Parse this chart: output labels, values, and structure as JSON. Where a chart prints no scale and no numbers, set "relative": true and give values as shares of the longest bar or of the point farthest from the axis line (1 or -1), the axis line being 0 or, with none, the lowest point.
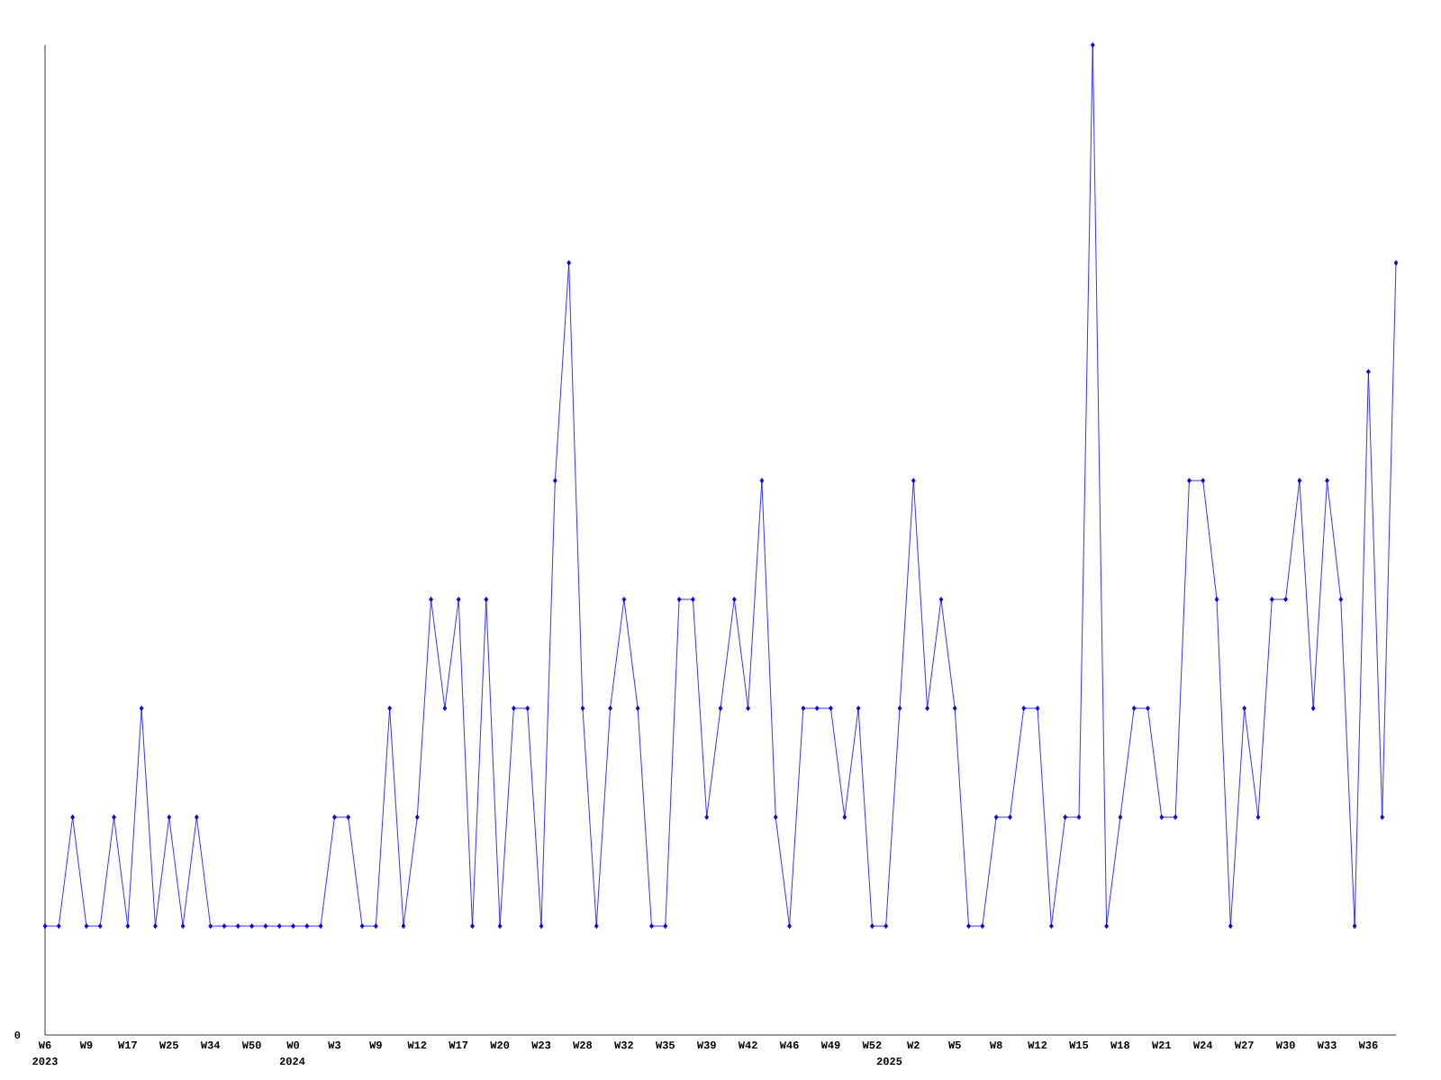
{
  "chart_data": {
    "type": "line",
    "relative": true,
    "color": "#0000ff",
    "marker": "diamond",
    "line_style": "solid",
    "categories": [
      "W6",
      null,
      null,
      "W9",
      null,
      null,
      "W17",
      null,
      null,
      "W25",
      null,
      null,
      "W34",
      null,
      null,
      "W50",
      null,
      null,
      "W0",
      null,
      null,
      "W3",
      null,
      null,
      "W9",
      null,
      null,
      "W12",
      null,
      null,
      "W17",
      null,
      null,
      "W20",
      null,
      null,
      "W23",
      null,
      null,
      "W28",
      null,
      null,
      "W32",
      null,
      null,
      "W35",
      null,
      null,
      "W39",
      null,
      null,
      "W42",
      null,
      null,
      "W46",
      null,
      null,
      "W49",
      null,
      null,
      "W52",
      null,
      null,
      "W2",
      null,
      null,
      "W5",
      null,
      null,
      "W8",
      null,
      null,
      "W12",
      null,
      null,
      "W15",
      null,
      null,
      "W18",
      null,
      null,
      "W21",
      null,
      null,
      "W24",
      null,
      null,
      "W27",
      null,
      null,
      "W30",
      null,
      null,
      "W33",
      null,
      null,
      "W36",
      null,
      null
    ],
    "values": [
      0.11,
      0.11,
      0.22,
      0.11,
      0.11,
      0.22,
      0.11,
      0.33,
      0.11,
      0.22,
      0.11,
      0.22,
      0.11,
      0.11,
      0.11,
      0.11,
      0.11,
      0.11,
      0.11,
      0.11,
      0.11,
      0.22,
      0.22,
      0.11,
      0.11,
      0.33,
      0.11,
      0.22,
      0.44,
      0.33,
      0.44,
      0.11,
      0.44,
      0.11,
      0.33,
      0.33,
      0.11,
      0.56,
      0.78,
      0.33,
      0.11,
      0.33,
      0.44,
      0.33,
      0.11,
      0.11,
      0.44,
      0.44,
      0.22,
      0.33,
      0.44,
      0.33,
      0.56,
      0.22,
      0.11,
      0.33,
      0.33,
      0.33,
      0.22,
      0.33,
      0.11,
      0.11,
      0.33,
      0.56,
      0.33,
      0.44,
      0.33,
      0.11,
      0.11,
      0.22,
      0.22,
      0.33,
      0.33,
      0.11,
      0.22,
      0.22,
      1,
      0.11,
      0.22,
      0.33,
      0.33,
      0.22,
      0.22,
      0.56,
      0.56,
      0.44,
      0.11,
      0.33,
      0.22,
      0.44,
      0.44,
      0.56,
      0.33,
      0.56,
      0.44,
      0.11,
      0.67,
      0.22,
      0.78
    ],
    "annotations": [
      "0",
      "2023",
      "2024",
      "2025"
    ]
  }
}
